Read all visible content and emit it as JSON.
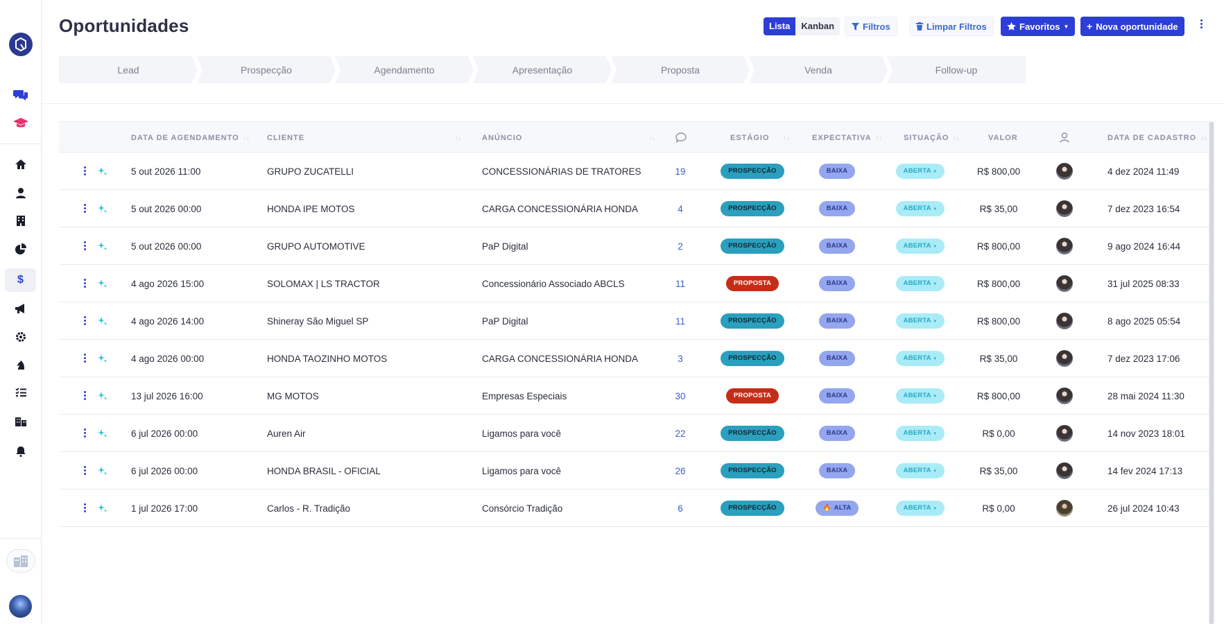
{
  "header": {
    "title": "Oportunidades",
    "view_toggle": {
      "list_label": "Lista",
      "kanban_label": "Kanban"
    },
    "filters_label": "Filtros",
    "clear_filters_label": "Limpar Filtros",
    "favorites_label": "Favoritos",
    "new_label": "Nova oportunidade"
  },
  "stages": [
    "Lead",
    "Prospecção",
    "Agendamento",
    "Apresentação",
    "Proposta",
    "Venda",
    "Follow-up"
  ],
  "sidebar": {
    "icons": [
      "chat-icon",
      "graduation-cap-icon",
      "home-icon",
      "user-icon",
      "building-icon",
      "pie-chart-icon",
      "dollar-icon",
      "megaphone-icon",
      "gear-icon",
      "chess-knight-icon",
      "checklist-icon",
      "city-icon",
      "bell-icon"
    ],
    "active": "dollar-icon"
  },
  "table": {
    "columns": {
      "data_agendamento": "DATA DE AGENDAMENTO",
      "cliente": "CLIENTE",
      "anuncio": "ANÚNCIO",
      "estagio": "ESTÁGIO",
      "expectativa": "EXPECTATIVA",
      "situacao": "SITUAÇÃO",
      "valor": "VALOR",
      "data_cadastro": "DATA DE CADASTRO"
    },
    "rows": [
      {
        "agendamento": "5 out 2026 11:00",
        "cliente": "GRUPO ZUCATELLI",
        "anuncio": "CONCESSIONÁRIAS DE TRATORES",
        "mensagens": "19",
        "estagio": "PROSPECÇÃO",
        "expectativa": "BAIXA",
        "situacao": "ABERTA",
        "valor": "R$ 800,00",
        "cadastro": "4 dez 2024 11:49"
      },
      {
        "agendamento": "5 out 2026 00:00",
        "cliente": "HONDA IPE MOTOS",
        "anuncio": "CARGA CONCESSIONÁRIA HONDA",
        "mensagens": "4",
        "estagio": "PROSPECÇÃO",
        "expectativa": "BAIXA",
        "situacao": "ABERTA",
        "valor": "R$ 35,00",
        "cadastro": "7 dez 2023 16:54"
      },
      {
        "agendamento": "5 out 2026 00:00",
        "cliente": "GRUPO AUTOMOTIVE",
        "anuncio": "PaP Digital",
        "mensagens": "2",
        "estagio": "PROSPECÇÃO",
        "expectativa": "BAIXA",
        "situacao": "ABERTA",
        "valor": "R$ 800,00",
        "cadastro": "9 ago 2024 16:44"
      },
      {
        "agendamento": "4 ago 2026 15:00",
        "cliente": "SOLOMAX | LS TRACTOR",
        "anuncio": "Concessionário Associado ABCLS",
        "mensagens": "11",
        "estagio": "PROPOSTA",
        "expectativa": "BAIXA",
        "situacao": "ABERTA",
        "valor": "R$ 800,00",
        "cadastro": "31 jul 2025 08:33"
      },
      {
        "agendamento": "4 ago 2026 14:00",
        "cliente": "Shineray São Miguel SP",
        "anuncio": "PaP Digital",
        "mensagens": "11",
        "estagio": "PROSPECÇÃO",
        "expectativa": "BAIXA",
        "situacao": "ABERTA",
        "valor": "R$ 800,00",
        "cadastro": "8 ago 2025 05:54"
      },
      {
        "agendamento": "4 ago 2026 00:00",
        "cliente": "HONDA TAOZINHO MOTOS",
        "anuncio": "CARGA CONCESSIONÁRIA HONDA",
        "mensagens": "3",
        "estagio": "PROSPECÇÃO",
        "expectativa": "BAIXA",
        "situacao": "ABERTA",
        "valor": "R$ 35,00",
        "cadastro": "7 dez 2023 17:06"
      },
      {
        "agendamento": "13 jul 2026 16:00",
        "cliente": "MG MOTOS",
        "anuncio": "Empresas Especiais",
        "mensagens": "30",
        "estagio": "PROPOSTA",
        "expectativa": "BAIXA",
        "situacao": "ABERTA",
        "valor": "R$ 800,00",
        "cadastro": "28 mai 2024 11:30"
      },
      {
        "agendamento": "6 jul 2026 00:00",
        "cliente": "Auren Air",
        "anuncio": "Ligamos para você",
        "mensagens": "22",
        "estagio": "PROSPECÇÃO",
        "expectativa": "BAIXA",
        "situacao": "ABERTA",
        "valor": "R$ 0,00",
        "cadastro": "14 nov 2023 18:01"
      },
      {
        "agendamento": "6 jul 2026 00:00",
        "cliente": "HONDA BRASIL - OFICIAL",
        "anuncio": "Ligamos para você",
        "mensagens": "26",
        "estagio": "PROSPECÇÃO",
        "expectativa": "BAIXA",
        "situacao": "ABERTA",
        "valor": "R$ 35,00",
        "cadastro": "14 fev 2024 17:13"
      },
      {
        "agendamento": "1 jul 2026 17:00",
        "cliente": "Carlos - R. Tradição",
        "anuncio": "Consórcio Tradição",
        "mensagens": "6",
        "estagio": "PROSPECÇÃO",
        "expectativa": "ALTA",
        "situacao": "ABERTA",
        "valor": "R$ 0,00",
        "cadastro": "26 jul 2024 10:43"
      }
    ]
  },
  "colors": {
    "primary": "#2d3ed6",
    "prospeccao": "#2b9fbd",
    "proposta": "#c62d17",
    "expectativa": "#94a6ee",
    "aberta": "#a9ecf8"
  }
}
